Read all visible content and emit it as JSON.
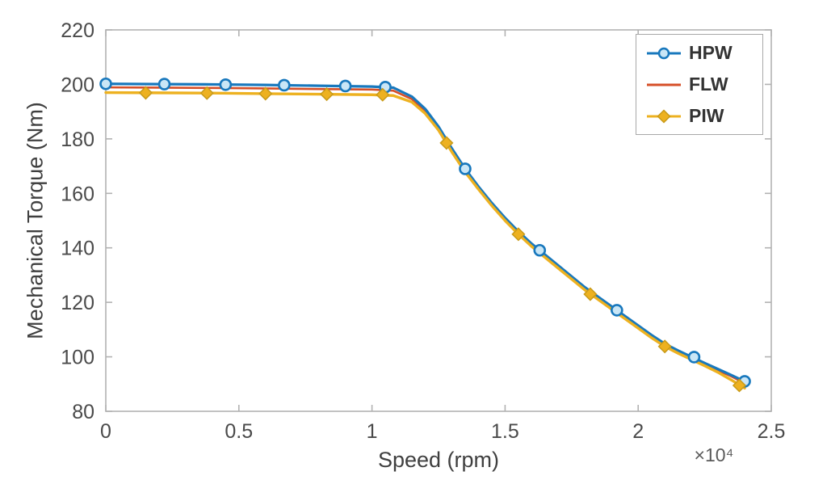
{
  "chart_data": {
    "type": "line",
    "title": "",
    "xlabel": "Speed (rpm)",
    "x_multiplier": "×10⁴",
    "ylabel": "Mechanical Torque (Nm)",
    "xlim": [
      0,
      2.5
    ],
    "ylim": [
      80,
      220
    ],
    "xticks": [
      0,
      0.5,
      1,
      1.5,
      2,
      2.5
    ],
    "xtick_labels": [
      "0",
      "0.5",
      "1",
      "1.5",
      "2",
      "2.5"
    ],
    "yticks": [
      80,
      100,
      120,
      140,
      160,
      180,
      200,
      220
    ],
    "ytick_labels": [
      "80",
      "100",
      "120",
      "140",
      "160",
      "180",
      "200",
      "220"
    ],
    "grid": false,
    "legend_position": "top-right",
    "axis_color": "#b2b2b2",
    "tick_text_color": "#4a4a4a",
    "label_text_color": "#3f3f3f",
    "series": [
      {
        "name": "HPW",
        "color": "#1878bd",
        "marker": "circle",
        "marker_face": "#c9e6f6",
        "marker_edge": "#1878bd",
        "line_width": 3.2,
        "line_x": [
          0,
          0.2,
          0.4,
          0.6,
          0.8,
          1.0,
          1.08,
          1.15,
          1.2,
          1.25,
          1.3,
          1.35,
          1.4,
          1.45,
          1.5,
          1.55,
          1.6,
          1.65,
          1.7,
          1.75,
          1.8,
          1.85,
          1.9,
          1.95,
          2.0,
          2.05,
          2.1,
          2.15,
          2.2,
          2.25,
          2.3,
          2.35,
          2.4
        ],
        "line_y": [
          200.2,
          200.1,
          200.0,
          199.8,
          199.5,
          199.2,
          198.8,
          195.5,
          191.0,
          184.5,
          176.5,
          169.0,
          162.5,
          156.5,
          151.0,
          146.0,
          141.5,
          137.5,
          133.5,
          129.5,
          125.5,
          122.0,
          118.5,
          115.0,
          111.5,
          108.0,
          104.8,
          102.3,
          100.0,
          97.7,
          95.5,
          93.3,
          91.0
        ],
        "marker_x": [
          0,
          0.22,
          0.45,
          0.67,
          0.9,
          1.05,
          1.35,
          1.63,
          1.92,
          2.21,
          2.4
        ],
        "marker_y": [
          200.2,
          200.1,
          199.9,
          199.7,
          199.4,
          199.0,
          169.0,
          139.1,
          117.1,
          99.9,
          91.0
        ]
      },
      {
        "name": "FLW",
        "color": "#d64f28",
        "marker": "none",
        "marker_face": "",
        "marker_edge": "",
        "line_width": 2.6,
        "line_x": [
          0,
          0.2,
          0.4,
          0.6,
          0.8,
          1.0,
          1.08,
          1.15,
          1.2,
          1.25,
          1.3,
          1.35,
          1.4,
          1.45,
          1.5,
          1.55,
          1.6,
          1.65,
          1.7,
          1.75,
          1.8,
          1.85,
          1.9,
          1.95,
          2.0,
          2.05,
          2.1,
          2.15,
          2.2,
          2.25,
          2.3,
          2.35,
          2.4
        ],
        "line_y": [
          198.9,
          198.8,
          198.7,
          198.5,
          198.3,
          198.1,
          197.7,
          194.6,
          190.2,
          183.8,
          175.8,
          168.4,
          162.0,
          156.0,
          150.5,
          145.5,
          141.0,
          137.0,
          133.0,
          129.0,
          125.0,
          121.5,
          118.0,
          114.5,
          111.0,
          107.5,
          104.3,
          101.8,
          99.5,
          97.2,
          95.0,
          92.8,
          90.3
        ],
        "marker_x": [],
        "marker_y": []
      },
      {
        "name": "PIW",
        "color": "#edb120",
        "marker": "diamond",
        "marker_face": "#edb120",
        "marker_edge": "#c89a18",
        "line_width": 3.4,
        "line_x": [
          0,
          0.2,
          0.4,
          0.6,
          0.8,
          1.0,
          1.08,
          1.15,
          1.2,
          1.25,
          1.3,
          1.35,
          1.4,
          1.45,
          1.5,
          1.55,
          1.6,
          1.65,
          1.7,
          1.75,
          1.8,
          1.85,
          1.9,
          1.95,
          2.0,
          2.05,
          2.1,
          2.15,
          2.2,
          2.25,
          2.3,
          2.35,
          2.4
        ],
        "line_y": [
          197.0,
          196.9,
          196.8,
          196.6,
          196.4,
          196.2,
          195.9,
          193.5,
          189.3,
          183.2,
          175.2,
          167.8,
          161.5,
          155.5,
          150.0,
          145.0,
          140.5,
          136.5,
          132.5,
          128.5,
          124.5,
          121.0,
          117.5,
          114.0,
          110.5,
          107.0,
          103.8,
          101.3,
          99.0,
          96.7,
          94.3,
          91.5,
          88.5
        ],
        "marker_x": [
          0.15,
          0.38,
          0.6,
          0.83,
          1.04,
          1.28,
          1.55,
          1.82,
          2.1,
          2.38
        ],
        "marker_y": [
          196.9,
          196.8,
          196.6,
          196.4,
          196.2,
          178.5,
          145.0,
          123.0,
          103.8,
          89.5
        ]
      }
    ]
  }
}
